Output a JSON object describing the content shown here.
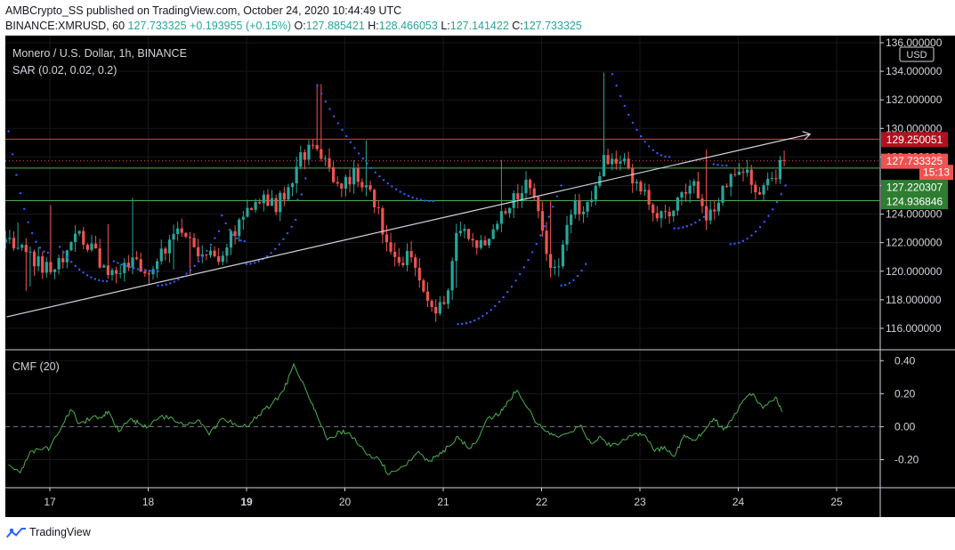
{
  "header": {
    "publish_line": "AMBCrypto_SS published on TradingView.com, October 24, 2020 10:44:49 UTC",
    "symbol": "BINANCE:XMRUSD, 60",
    "last": "127.733325",
    "change": "+0.193955 (+0.15%)",
    "o_label": "O:",
    "o_value": "127.885421",
    "h_label": "H:",
    "h_value": "128.466053",
    "l_label": "L:",
    "l_value": "127.141422",
    "c_label": "C:",
    "c_value": "127.733325"
  },
  "legend": {
    "title": "Monero / U.S. Dollar, 1h, BINANCE",
    "sar": "SAR (0.02, 0.02, 0.2)",
    "cmf": "CMF (20)"
  },
  "footer": {
    "brand": "TradingView"
  },
  "colors": {
    "up": "#26a69a",
    "down": "#ef5350",
    "sar": "#2962ff",
    "cmf": "#4caf50",
    "resistance": "#f23645",
    "support": "#4caf50",
    "trend": "#d1d4dc",
    "background": "#000000",
    "axis_text": "#d1d4dc"
  },
  "chart_data": [
    {
      "type": "candlestick",
      "panel": "price",
      "currency_label": "USD",
      "x_labels": [
        "17",
        "18",
        "19",
        "20",
        "21",
        "22",
        "23",
        "24",
        "25"
      ],
      "bold_x_label": "19",
      "ylim": [
        114.5,
        136.5
      ],
      "y_ticks": [
        "116.000000",
        "118.000000",
        "120.000000",
        "122.000000",
        "124.000000",
        "126.000000",
        "128.000000",
        "130.000000",
        "132.000000",
        "134.000000",
        "136.000000"
      ],
      "y_tick_values": [
        116,
        118,
        120,
        122,
        124,
        126,
        128,
        130,
        132,
        134,
        136
      ],
      "grid": true,
      "price_tags": [
        {
          "label": "129.250051",
          "value": 129.250051,
          "kind": "resistance"
        },
        {
          "label": "127.733325",
          "value": 127.733325,
          "kind": "last"
        },
        {
          "label": "15:13",
          "value": 126.95,
          "kind": "countdown"
        },
        {
          "label": "127.220307",
          "value": 125.9,
          "kind": "support"
        },
        {
          "label": "124.936846",
          "value": 124.9,
          "kind": "support"
        }
      ],
      "horizontal_lines": [
        {
          "value": 129.25,
          "kind": "resistance"
        },
        {
          "value": 127.73,
          "kind": "last"
        },
        {
          "value": 127.22,
          "kind": "support"
        },
        {
          "value": 124.94,
          "kind": "support"
        }
      ],
      "trendline": {
        "from": [
          16.56,
          116.8
        ],
        "to": [
          24.73,
          129.6
        ]
      },
      "candle_path": [
        [
          16.55,
          122.0
        ],
        [
          16.75,
          121.4
        ],
        [
          16.95,
          120.2
        ],
        [
          17.15,
          121.1
        ],
        [
          17.3,
          122.6
        ],
        [
          17.45,
          121.3
        ],
        [
          17.6,
          120.0
        ],
        [
          17.8,
          120.6
        ],
        [
          18.0,
          120.2
        ],
        [
          18.15,
          121.3
        ],
        [
          18.3,
          122.9
        ],
        [
          18.5,
          121.6
        ],
        [
          18.7,
          121.0
        ],
        [
          18.85,
          122.6
        ],
        [
          19.0,
          124.3
        ],
        [
          19.15,
          125.0
        ],
        [
          19.3,
          124.5
        ],
        [
          19.45,
          126.2
        ],
        [
          19.55,
          127.8
        ],
        [
          19.65,
          129.0
        ],
        [
          19.8,
          127.6
        ],
        [
          19.95,
          126.1
        ],
        [
          20.1,
          126.8
        ],
        [
          20.25,
          126.0
        ],
        [
          20.35,
          124.0
        ],
        [
          20.45,
          121.2
        ],
        [
          20.55,
          120.5
        ],
        [
          20.65,
          121.4
        ],
        [
          20.75,
          119.6
        ],
        [
          20.85,
          117.6
        ],
        [
          20.95,
          117.3
        ],
        [
          21.05,
          118.7
        ],
        [
          21.15,
          122.8
        ],
        [
          21.3,
          122.0
        ],
        [
          21.45,
          121.5
        ],
        [
          21.55,
          123.2
        ],
        [
          21.65,
          124.6
        ],
        [
          21.75,
          125.3
        ],
        [
          21.85,
          126.2
        ],
        [
          21.95,
          125.0
        ],
        [
          22.0,
          123.1
        ],
        [
          22.08,
          120.3
        ],
        [
          22.15,
          119.9
        ],
        [
          22.25,
          122.8
        ],
        [
          22.35,
          124.6
        ],
        [
          22.45,
          124.2
        ],
        [
          22.55,
          126.0
        ],
        [
          22.65,
          128.0
        ],
        [
          22.75,
          127.2
        ],
        [
          22.85,
          127.8
        ],
        [
          22.95,
          126.3
        ],
        [
          23.05,
          125.2
        ],
        [
          23.15,
          124.0
        ],
        [
          23.3,
          124.4
        ],
        [
          23.45,
          125.6
        ],
        [
          23.55,
          125.8
        ],
        [
          23.65,
          124.2
        ],
        [
          23.75,
          123.6
        ],
        [
          23.85,
          126.0
        ],
        [
          23.95,
          126.5
        ],
        [
          24.05,
          127.1
        ],
        [
          24.15,
          126.0
        ],
        [
          24.25,
          125.6
        ],
        [
          24.35,
          126.4
        ],
        [
          24.45,
          127.7
        ]
      ],
      "sar_segments": [
        {
          "from": [
            16.58,
            129.8
          ],
          "to": [
            16.98,
            121.3
          ],
          "shape": "exp"
        },
        {
          "from": [
            17.1,
            121.7
          ],
          "to": [
            17.58,
            119.3
          ],
          "shape": "exp"
        },
        {
          "from": [
            17.65,
            120.7
          ],
          "to": [
            18.1,
            120.0
          ],
          "shape": "exp"
        },
        {
          "from": [
            18.1,
            119.0
          ],
          "to": [
            18.72,
            122.8
          ],
          "shape": "par"
        },
        {
          "from": [
            18.75,
            123.9
          ],
          "to": [
            18.98,
            122.1
          ],
          "shape": "exp"
        },
        {
          "from": [
            19.0,
            120.5
          ],
          "to": [
            19.5,
            123.6
          ],
          "shape": "par"
        },
        {
          "from": [
            19.52,
            125.0
          ],
          "to": [
            19.6,
            126.5
          ],
          "shape": "par"
        },
        {
          "from": [
            19.72,
            133.0
          ],
          "to": [
            20.9,
            124.9
          ],
          "shape": "exp"
        },
        {
          "from": [
            21.15,
            116.3
          ],
          "to": [
            22.2,
            126.0
          ],
          "shape": "par"
        },
        {
          "from": [
            22.2,
            119.0
          ],
          "to": [
            22.45,
            120.5
          ],
          "shape": "par"
        },
        {
          "from": [
            22.72,
            133.8
          ],
          "to": [
            23.3,
            128.0
          ],
          "shape": "exp"
        },
        {
          "from": [
            23.35,
            123.0
          ],
          "to": [
            23.65,
            123.8
          ],
          "shape": "par"
        },
        {
          "from": [
            23.75,
            127.5
          ],
          "to": [
            23.88,
            127.4
          ],
          "shape": "exp"
        },
        {
          "from": [
            23.92,
            121.9
          ],
          "to": [
            24.48,
            126.0
          ],
          "shape": "par"
        }
      ]
    },
    {
      "type": "line",
      "panel": "indicator",
      "series": [
        {
          "name": "CMF (20)",
          "x": [
            16.58,
            16.7,
            16.8,
            16.92,
            17.0,
            17.15,
            17.22,
            17.3,
            17.42,
            17.55,
            17.6,
            17.7,
            17.82,
            17.9,
            18.0,
            18.12,
            18.25,
            18.38,
            18.5,
            18.62,
            18.75,
            18.88,
            19.0,
            19.12,
            19.25,
            19.38,
            19.48,
            19.62,
            19.7,
            19.82,
            19.95,
            20.05,
            20.2,
            20.35,
            20.45,
            20.6,
            20.75,
            20.85,
            20.95,
            21.05,
            21.15,
            21.25,
            21.35,
            21.45,
            21.58,
            21.65,
            21.75,
            21.85,
            21.95,
            22.05,
            22.15,
            22.3,
            22.4,
            22.5,
            22.6,
            22.7,
            22.85,
            22.95,
            23.05,
            23.15,
            23.25,
            23.35,
            23.45,
            23.55,
            23.65,
            23.75,
            23.85,
            23.95,
            24.05,
            24.15,
            24.25,
            24.38,
            24.45
          ],
          "values": [
            -0.23,
            -0.28,
            -0.15,
            -0.14,
            -0.13,
            0.03,
            0.1,
            0.02,
            0.05,
            0.07,
            0.09,
            -0.03,
            0.05,
            0.02,
            0.0,
            0.06,
            0.05,
            0.01,
            0.04,
            -0.05,
            0.05,
            0.02,
            0.0,
            0.07,
            0.13,
            0.22,
            0.38,
            0.2,
            0.1,
            -0.08,
            -0.03,
            -0.04,
            -0.15,
            -0.2,
            -0.29,
            -0.24,
            -0.15,
            -0.21,
            -0.18,
            -0.12,
            -0.06,
            -0.13,
            -0.08,
            0.05,
            0.08,
            0.15,
            0.22,
            0.12,
            0.02,
            -0.03,
            -0.06,
            -0.03,
            0.01,
            -0.1,
            -0.06,
            -0.12,
            -0.08,
            -0.04,
            -0.05,
            -0.15,
            -0.12,
            -0.18,
            -0.05,
            -0.08,
            -0.03,
            0.05,
            -0.02,
            0.06,
            0.16,
            0.2,
            0.11,
            0.18,
            0.09
          ]
        }
      ],
      "ylim": [
        -0.37,
        0.45
      ],
      "y_ticks": [
        "0.40",
        "0.20",
        "0.00",
        "-0.20"
      ],
      "y_tick_values": [
        0.4,
        0.2,
        0.0,
        -0.2
      ],
      "zero_line": "dashed"
    }
  ]
}
